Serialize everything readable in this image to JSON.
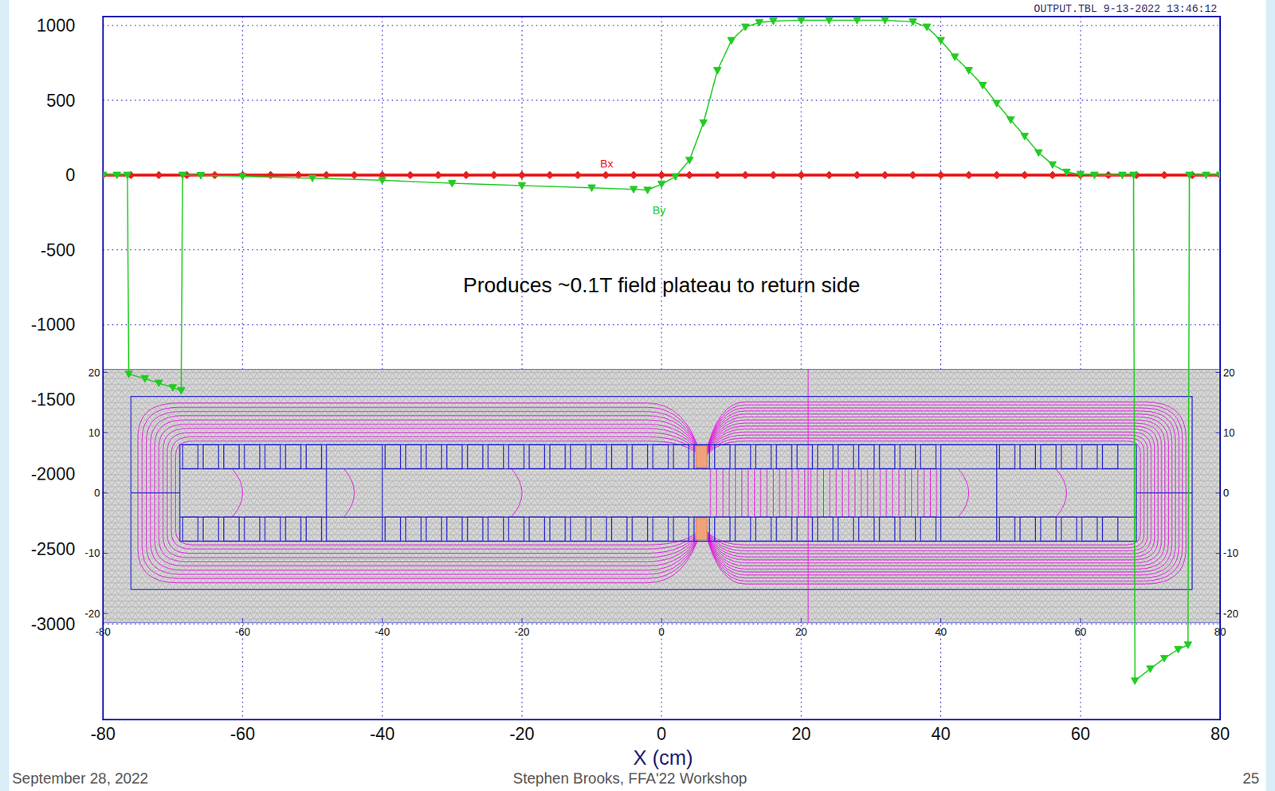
{
  "chart_data": [
    {
      "type": "line",
      "subtitle": "OUTPUT.TBL 9-13-2022 13:46:12",
      "xlabel": "X (cm)",
      "annotation": "Produces ~0.1T field plateau to return side",
      "xlim": [
        -80,
        80
      ],
      "xticks": [
        -80,
        -60,
        -40,
        -20,
        0,
        20,
        40,
        60,
        80
      ],
      "ylim": [
        -3640,
        1060
      ],
      "yticks": [
        -3000,
        -2500,
        -2000,
        -1500,
        -1000,
        -500,
        0,
        500,
        1000
      ],
      "grid": true,
      "series": [
        {
          "name": "Bx",
          "color": "#e82020",
          "marker": "diamond",
          "x": [
            -80,
            -76,
            -72,
            -68,
            -64,
            -60,
            -56,
            -52,
            -48,
            -44,
            -40,
            -36,
            -32,
            -28,
            -24,
            -20,
            -16,
            -12,
            -8,
            -4,
            0,
            4,
            8,
            12,
            16,
            20,
            24,
            28,
            32,
            36,
            40,
            44,
            48,
            52,
            56,
            60,
            64,
            68,
            72,
            76,
            80
          ],
          "values": [
            0,
            0,
            0,
            0,
            0,
            0,
            0,
            0,
            0,
            0,
            0,
            0,
            0,
            0,
            0,
            0,
            0,
            0,
            0,
            0,
            0,
            0,
            0,
            0,
            0,
            0,
            0,
            0,
            0,
            0,
            0,
            0,
            0,
            0,
            0,
            0,
            0,
            0,
            0,
            0,
            0
          ]
        },
        {
          "name": "By",
          "color": "#22cc22",
          "marker": "triangle",
          "x": [
            -80,
            -78,
            -76.5,
            -76.3,
            -74,
            -72,
            -70,
            -68.8,
            -68.6,
            -66,
            -60,
            -50,
            -40,
            -30,
            -20,
            -10,
            -4,
            -2,
            0,
            2,
            4,
            6,
            8,
            10,
            12,
            14,
            16,
            20,
            24,
            28,
            32,
            36,
            38,
            40,
            42,
            44,
            46,
            48,
            50,
            52,
            54,
            56,
            58,
            60,
            62,
            66,
            67.6,
            67.8,
            70,
            72,
            74,
            75.4,
            75.6,
            78,
            80
          ],
          "values": [
            0,
            0,
            0,
            -1330,
            -1360,
            -1390,
            -1420,
            -1440,
            0,
            -2,
            -8,
            -20,
            -35,
            -55,
            -70,
            -85,
            -95,
            -100,
            -60,
            -10,
            100,
            350,
            700,
            900,
            990,
            1020,
            1030,
            1035,
            1035,
            1035,
            1035,
            1025,
            990,
            900,
            790,
            700,
            600,
            480,
            370,
            260,
            150,
            70,
            20,
            5,
            0,
            0,
            0,
            -3380,
            -3300,
            -3230,
            -3170,
            -3140,
            0,
            0,
            0
          ]
        }
      ]
    },
    {
      "type": "field_map",
      "xlim": [
        -80,
        80
      ],
      "xticks": [
        -80,
        -60,
        -40,
        -20,
        0,
        20,
        40,
        60,
        80
      ],
      "ylim": [
        -21.5,
        20.5
      ],
      "yticks": [
        -20,
        -10,
        0,
        10,
        20
      ]
    }
  ],
  "footer": {
    "date": "September 28, 2022",
    "author": "Stephen Brooks, FFA'22 Workshop",
    "page": 25
  }
}
